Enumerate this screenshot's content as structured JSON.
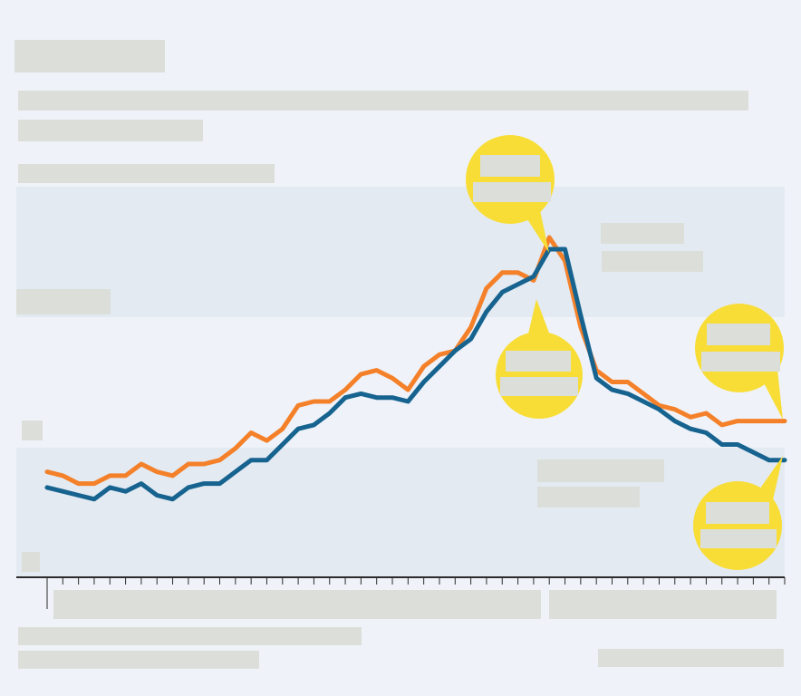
{
  "figure": {
    "title": "",
    "subtitle": "",
    "unit_label": "",
    "source": "",
    "credit": ""
  },
  "colors": {
    "background": "#eff3f9",
    "band": "#e3eaf2",
    "orange": "#f4812a",
    "blue": "#17638f",
    "callout": "#f8dd36",
    "axis": "#2b2b2b",
    "redaction": "#dcdfd9"
  },
  "chart_data": {
    "type": "line",
    "title": "",
    "xlabel": "",
    "ylabel": "",
    "ylim": [
      0,
      100
    ],
    "grid": false,
    "x": [
      1,
      2,
      3,
      4,
      5,
      6,
      7,
      8,
      9,
      10,
      11,
      12,
      13,
      14,
      15,
      16,
      17,
      18,
      19,
      20,
      21,
      22,
      23,
      24,
      25,
      26,
      27,
      28,
      29,
      30,
      31,
      32,
      33,
      34,
      35,
      36,
      37,
      38,
      39,
      40,
      41,
      42,
      43,
      44,
      45,
      46,
      47,
      48
    ],
    "series": [
      {
        "color": "#f4812a",
        "values": [
          27,
          26,
          24,
          24,
          26,
          26,
          29,
          27,
          26,
          29,
          29,
          30,
          33,
          37,
          35,
          38,
          44,
          45,
          45,
          48,
          52,
          53,
          51,
          48,
          54,
          57,
          58,
          64,
          74,
          78,
          78,
          76,
          87,
          81,
          64,
          53,
          50,
          50,
          47,
          44,
          43,
          41,
          42,
          39,
          40,
          40,
          40,
          40
        ]
      },
      {
        "color": "#17638f",
        "values": [
          23,
          22,
          21,
          20,
          23,
          22,
          24,
          21,
          20,
          23,
          24,
          24,
          27,
          30,
          30,
          34,
          38,
          39,
          42,
          46,
          47,
          46,
          46,
          45,
          50,
          54,
          58,
          61,
          68,
          73,
          75,
          77,
          84,
          84,
          67,
          51,
          48,
          47,
          45,
          43,
          40,
          38,
          37,
          34,
          34,
          32,
          30,
          30
        ]
      }
    ]
  }
}
